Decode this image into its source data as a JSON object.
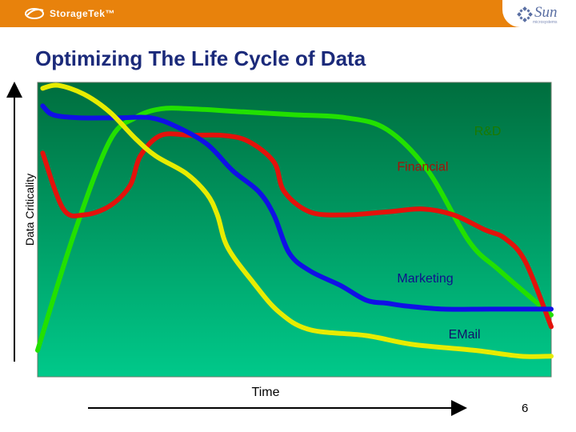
{
  "header": {
    "left_logo_text": "StorageTek™",
    "right_logo_text": "Sun",
    "right_logo_subtext": "microsystems",
    "bar_color": "#e8820c"
  },
  "slide": {
    "title": "Optimizing The Life Cycle of Data",
    "number": "6"
  },
  "chart_data": {
    "type": "line",
    "title": "Optimizing The Life Cycle of Data",
    "xlabel": "Time",
    "ylabel": "Data Criticality",
    "xlim": [
      0,
      100
    ],
    "ylim": [
      0,
      100
    ],
    "background": [
      "#006e3e",
      "#00c98a"
    ],
    "series": [
      {
        "name": "R&D",
        "color": "#22e000",
        "label_color": "#1a7a00",
        "label_at": [
          85,
          82
        ],
        "points": [
          [
            0,
            9
          ],
          [
            7,
            48
          ],
          [
            14,
            80
          ],
          [
            19,
            88
          ],
          [
            24,
            91
          ],
          [
            30,
            91
          ],
          [
            40,
            90
          ],
          [
            50,
            89
          ],
          [
            60,
            88
          ],
          [
            68,
            84
          ],
          [
            76,
            70
          ],
          [
            84,
            46
          ],
          [
            90,
            36
          ],
          [
            100,
            21
          ]
        ]
      },
      {
        "name": "Financial",
        "color": "#e3120b",
        "label_color": "#a81008",
        "label_at": [
          70,
          70
        ],
        "points": [
          [
            1,
            76
          ],
          [
            5,
            57
          ],
          [
            9,
            55
          ],
          [
            14,
            58
          ],
          [
            18,
            65
          ],
          [
            20,
            75
          ],
          [
            24,
            82
          ],
          [
            30,
            82
          ],
          [
            36,
            82
          ],
          [
            41,
            80
          ],
          [
            46,
            73
          ],
          [
            48,
            63
          ],
          [
            53,
            56
          ],
          [
            60,
            55
          ],
          [
            68,
            56
          ],
          [
            75,
            57
          ],
          [
            81,
            55
          ],
          [
            87,
            50
          ],
          [
            91,
            47
          ],
          [
            95,
            39
          ],
          [
            100,
            17
          ]
        ]
      },
      {
        "name": "Marketing",
        "color": "#1010e6",
        "label_color": "#10108c",
        "label_at": [
          70,
          32
        ],
        "points": [
          [
            1,
            92
          ],
          [
            3,
            89
          ],
          [
            8,
            88
          ],
          [
            16,
            88
          ],
          [
            22,
            88
          ],
          [
            27,
            85
          ],
          [
            33,
            79
          ],
          [
            38,
            70
          ],
          [
            43,
            63
          ],
          [
            46,
            55
          ],
          [
            49,
            42
          ],
          [
            53,
            36
          ],
          [
            59,
            31
          ],
          [
            64,
            26
          ],
          [
            68,
            25
          ],
          [
            72,
            24
          ],
          [
            79,
            23
          ],
          [
            88,
            23
          ],
          [
            100,
            23
          ]
        ]
      },
      {
        "name": "EMail",
        "color": "#e7ec00",
        "label_color": "#11116a",
        "label_at": [
          80,
          13
        ],
        "points": [
          [
            1,
            98
          ],
          [
            4,
            99
          ],
          [
            9,
            96
          ],
          [
            14,
            90
          ],
          [
            19,
            81
          ],
          [
            23,
            75
          ],
          [
            29,
            69
          ],
          [
            33,
            62
          ],
          [
            35,
            55
          ],
          [
            37,
            44
          ],
          [
            42,
            32
          ],
          [
            47,
            22
          ],
          [
            53,
            16
          ],
          [
            64,
            14
          ],
          [
            73,
            11
          ],
          [
            85,
            9
          ],
          [
            94,
            7
          ],
          [
            100,
            7
          ]
        ]
      }
    ]
  }
}
